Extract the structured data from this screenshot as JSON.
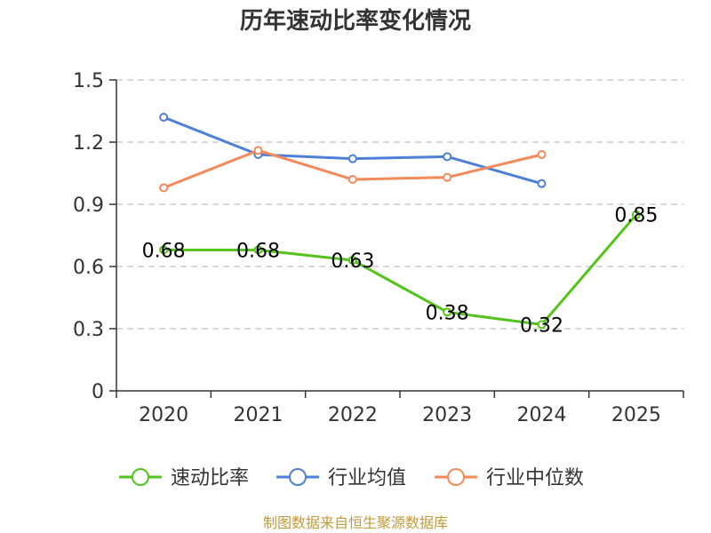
{
  "chart_data": {
    "type": "line",
    "title": "历年速动比率变化情况",
    "categories": [
      "2020",
      "2021",
      "2022",
      "2023",
      "2024",
      "2025"
    ],
    "ylim": [
      0,
      1.5
    ],
    "yticks": [
      "0",
      "0.3",
      "0.6",
      "0.9",
      "1.2",
      "1.5"
    ],
    "grid": true,
    "legend_position": "bottom",
    "series": [
      {
        "name": "速动比率",
        "color": "#52c41a",
        "values": [
          0.68,
          0.68,
          0.63,
          0.38,
          0.32,
          0.85
        ],
        "labels": [
          "0.68",
          "0.68",
          "0.63",
          "0.38",
          "0.32",
          "0.85"
        ]
      },
      {
        "name": "行业均值",
        "color": "#4e7fd9",
        "values": [
          1.32,
          1.14,
          1.12,
          1.13,
          1.0,
          null
        ]
      },
      {
        "name": "行业中位数",
        "color": "#f5895a",
        "values": [
          0.98,
          1.16,
          1.02,
          1.03,
          1.14,
          null
        ]
      }
    ]
  },
  "footer": {
    "source": "制图数据来自恒生聚源数据库"
  }
}
